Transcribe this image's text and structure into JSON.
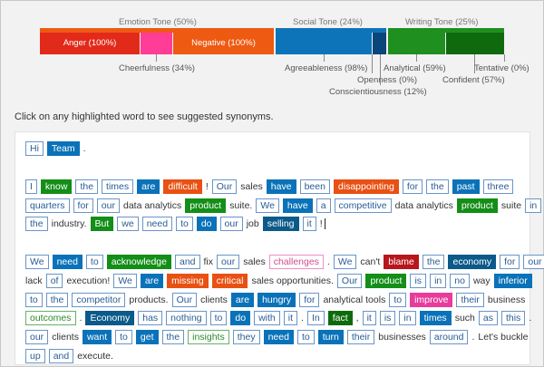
{
  "colors": {
    "anger": "#e22a1a",
    "cheerfulness": "#ff3d96",
    "negative": "#ee5a12",
    "social_blue": "#0e74b9",
    "social_dark": "#09467a",
    "writing_green": "#1f8f1f",
    "writing_dark": "#0f6a0f",
    "highlight_outline": "#6a95c8",
    "highlight_fill": "#0a72b8"
  },
  "tone": {
    "emotion": {
      "title": "Emotion Tone (50%)",
      "anger": "Anger (100%)",
      "negative": "Negative (100%)",
      "cheerfulness": "Cheerfulness (34%)"
    },
    "social": {
      "title": "Social Tone (24%)",
      "agreeableness": "Agreeableness (98%)",
      "openness": "Openness (0%)",
      "conscientiousness": "Conscientiousness (12%)"
    },
    "writing": {
      "title": "Writing Tone (25%)",
      "analytical": "Analytical (59%)",
      "confident": "Confident (57%)",
      "tentative": "Tentative (0%)"
    }
  },
  "instruction": "Click on any highlighted word to see suggested synonyms.",
  "document": {
    "lines": [
      [
        [
          "Hi",
          "o"
        ],
        [
          "Team",
          "b"
        ],
        [
          ".",
          "t"
        ]
      ],
      [],
      [
        [
          "I",
          "o"
        ],
        [
          "know",
          "g"
        ],
        [
          "the",
          "o"
        ],
        [
          "times",
          "o"
        ],
        [
          "are",
          "b"
        ],
        [
          "difficult",
          "or"
        ],
        [
          "!",
          "t"
        ],
        [
          "Our",
          "o"
        ],
        [
          "sales",
          "t"
        ],
        [
          "have",
          "b"
        ],
        [
          "been",
          "o"
        ],
        [
          "disappointing",
          "or"
        ],
        [
          "for",
          "o"
        ],
        [
          "the",
          "o"
        ],
        [
          "past",
          "b"
        ],
        [
          "three",
          "o"
        ]
      ],
      [
        [
          "quarters",
          "o"
        ],
        [
          "for",
          "o"
        ],
        [
          "our",
          "o"
        ],
        [
          "data analytics",
          "t"
        ],
        [
          "product",
          "g"
        ],
        [
          "suite.",
          "t"
        ],
        [
          "We",
          "o"
        ],
        [
          "have",
          "b"
        ],
        [
          "a",
          "o"
        ],
        [
          "competitive",
          "o"
        ],
        [
          "data analytics",
          "t"
        ],
        [
          "product",
          "g"
        ],
        [
          "suite",
          "t"
        ],
        [
          "in",
          "o"
        ]
      ],
      [
        [
          "the",
          "o"
        ],
        [
          "industry.",
          "t"
        ],
        [
          "But",
          "g"
        ],
        [
          "we",
          "o"
        ],
        [
          "need",
          "o"
        ],
        [
          "to",
          "o"
        ],
        [
          "do",
          "b"
        ],
        [
          "our",
          "o"
        ],
        [
          "job",
          "t"
        ],
        [
          "selling",
          "dn"
        ],
        [
          "it",
          "o"
        ],
        [
          "!",
          "t"
        ]
      ],
      [],
      [
        [
          "We",
          "o"
        ],
        [
          "need",
          "b"
        ],
        [
          "to",
          "o"
        ],
        [
          "acknowledge",
          "g"
        ],
        [
          "and",
          "o"
        ],
        [
          "fix",
          "t"
        ],
        [
          "our",
          "o"
        ],
        [
          "sales",
          "t"
        ],
        [
          "challenges",
          "po"
        ],
        [
          ".",
          "t"
        ],
        [
          "We",
          "o"
        ],
        [
          "can't",
          "t"
        ],
        [
          "blame",
          "rd"
        ],
        [
          "the",
          "o"
        ],
        [
          "economy",
          "dn"
        ],
        [
          "for",
          "o"
        ],
        [
          "our",
          "o"
        ]
      ],
      [
        [
          "lack",
          "t"
        ],
        [
          "of",
          "o"
        ],
        [
          "execution!",
          "t"
        ],
        [
          "We",
          "o"
        ],
        [
          "are",
          "b"
        ],
        [
          "missing",
          "or"
        ],
        [
          "critical",
          "or"
        ],
        [
          "sales opportunities.",
          "t"
        ],
        [
          "Our",
          "o"
        ],
        [
          "product",
          "g"
        ],
        [
          "is",
          "o"
        ],
        [
          "in",
          "o"
        ],
        [
          "no",
          "o"
        ],
        [
          "way",
          "t"
        ],
        [
          "inferior",
          "b"
        ]
      ],
      [
        [
          "to",
          "o"
        ],
        [
          "the",
          "o"
        ],
        [
          "competitor",
          "o"
        ],
        [
          "products.",
          "t"
        ],
        [
          "Our",
          "o"
        ],
        [
          "clients",
          "t"
        ],
        [
          "are",
          "b"
        ],
        [
          "hungry",
          "b"
        ],
        [
          "for",
          "o"
        ],
        [
          "analytical tools",
          "t"
        ],
        [
          "to",
          "o"
        ],
        [
          "improve",
          "pk"
        ],
        [
          "their",
          "o"
        ],
        [
          "business",
          "t"
        ]
      ],
      [
        [
          "outcomes",
          "go"
        ],
        [
          ".",
          "t"
        ],
        [
          "Economy",
          "dn"
        ],
        [
          "has",
          "o"
        ],
        [
          "nothing",
          "o"
        ],
        [
          "to",
          "o"
        ],
        [
          "do",
          "b"
        ],
        [
          "with",
          "o"
        ],
        [
          "it",
          "o"
        ],
        [
          ".",
          "t"
        ],
        [
          "In",
          "o"
        ],
        [
          "fact",
          "gd"
        ],
        [
          ",",
          "t"
        ],
        [
          "it",
          "o"
        ],
        [
          "is",
          "o"
        ],
        [
          "in",
          "o"
        ],
        [
          "times",
          "b"
        ],
        [
          "such",
          "t"
        ],
        [
          "as",
          "o"
        ],
        [
          "this",
          "o"
        ],
        [
          ".",
          "t"
        ]
      ],
      [
        [
          "our",
          "o"
        ],
        [
          "clients",
          "t"
        ],
        [
          "want",
          "b"
        ],
        [
          "to",
          "o"
        ],
        [
          "get",
          "b"
        ],
        [
          "the",
          "o"
        ],
        [
          "insights",
          "go"
        ],
        [
          "they",
          "o"
        ],
        [
          "need",
          "b"
        ],
        [
          "to",
          "o"
        ],
        [
          "turn",
          "b"
        ],
        [
          "their",
          "o"
        ],
        [
          "businesses",
          "t"
        ],
        [
          "around",
          "o"
        ],
        [
          ".",
          "t"
        ],
        [
          "Let's buckle",
          "t"
        ]
      ],
      [
        [
          "up",
          "o"
        ],
        [
          "and",
          "o"
        ],
        [
          "execute.",
          "t"
        ]
      ]
    ]
  }
}
